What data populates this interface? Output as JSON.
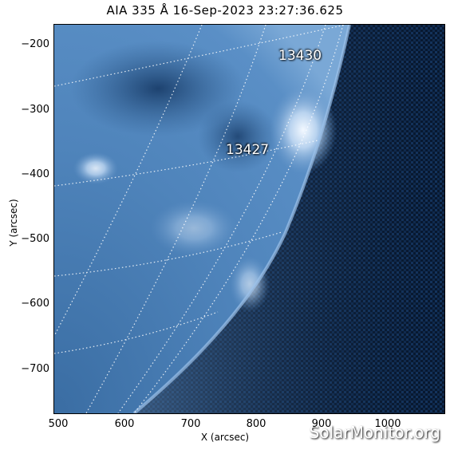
{
  "title": "AIA 335 Å 16-Sep-2023 23:27:36.625",
  "x_axis": {
    "label": "X (arcsec)",
    "ticks": [
      "500",
      "600",
      "700",
      "800",
      "900",
      "1000"
    ]
  },
  "y_axis": {
    "label": "Y (arcsec)",
    "ticks": [
      "−200",
      "−300",
      "−400",
      "−500",
      "−600",
      "−700"
    ]
  },
  "active_regions": [
    {
      "label": "13430"
    },
    {
      "label": "13427"
    }
  ],
  "watermark": "SolarMonitor.org",
  "colors": {
    "sky": "#061428",
    "disk_dark": "#1f4a7a",
    "disk_mid": "#4a7fb5",
    "bright": "#e8f2ff",
    "grid": "#ffffff"
  }
}
